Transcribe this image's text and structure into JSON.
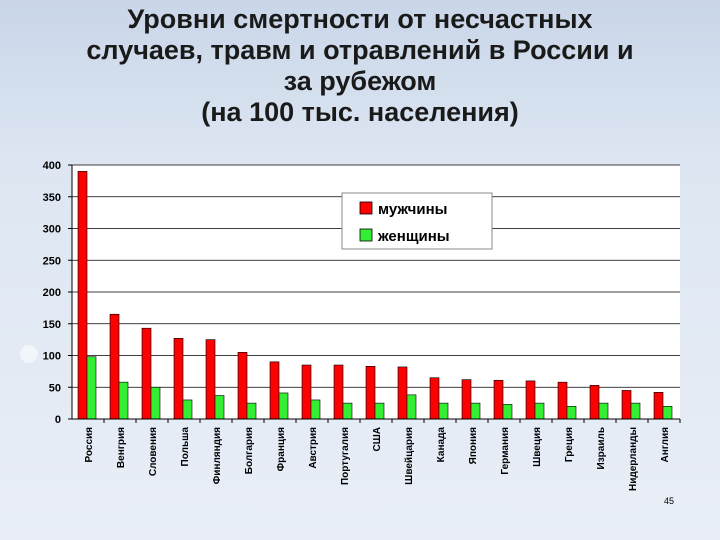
{
  "slide": {
    "title_lines": [
      "Уровни смертности от несчастных",
      "случаев, травм и отравлений в России и",
      "за рубежом",
      "(на 100 тыс. населения)"
    ],
    "page_number": "45"
  },
  "colors": {
    "male": "#ff0000",
    "female": "#33ee33",
    "plot_bg": "#ffffff"
  },
  "chart_data": {
    "type": "bar",
    "title": "Уровни смертности от несчастных случаев, травм и отравлений в России и за рубежом (на 100 тыс. населения)",
    "categories": [
      "Россия",
      "Венгрия",
      "Словения",
      "Польша",
      "Финляндия",
      "Болгария",
      "Франция",
      "Австрия",
      "Португалия",
      "США",
      "Швейцария",
      "Канада",
      "Япония",
      "Германия",
      "Швеция",
      "Греция",
      "Израиль",
      "Нидерланды",
      "Англия"
    ],
    "series": [
      {
        "name": "мужчины",
        "values": [
          390,
          165,
          143,
          127,
          125,
          105,
          90,
          85,
          85,
          83,
          82,
          65,
          62,
          61,
          60,
          58,
          53,
          45,
          42
        ]
      },
      {
        "name": "женщины",
        "values": [
          98,
          58,
          50,
          30,
          37,
          25,
          41,
          30,
          25,
          25,
          38,
          25,
          25,
          23,
          25,
          20,
          25,
          25,
          20
        ]
      }
    ],
    "y_ticks": [
      "0",
      "50",
      "100",
      "150",
      "200",
      "250",
      "300",
      "350",
      "400"
    ],
    "ylim": [
      0,
      400
    ],
    "xlabel": "",
    "ylabel": "",
    "grid": true,
    "legend_position": "top-right"
  }
}
